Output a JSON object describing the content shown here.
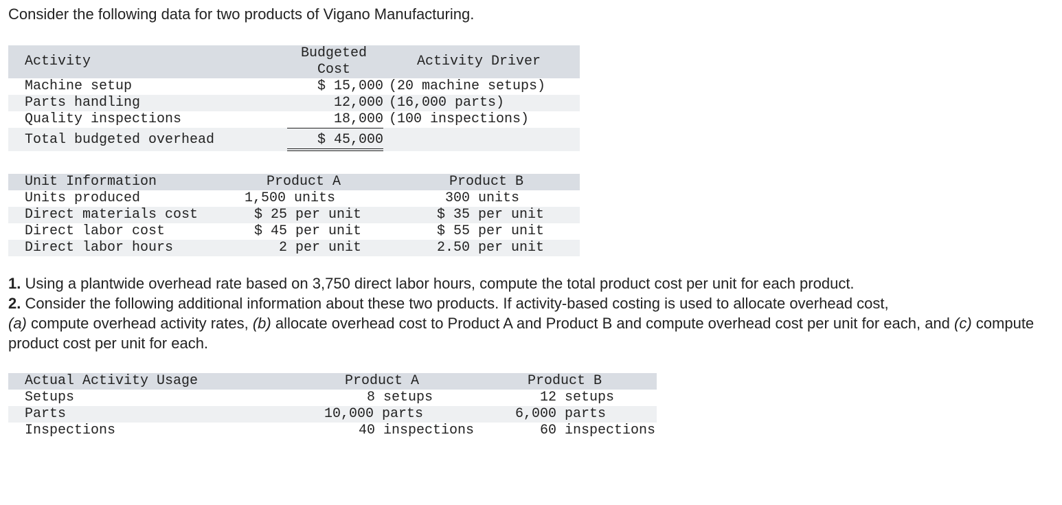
{
  "intro": "Consider the following data for two products of Vigano Manufacturing.",
  "overhead_table": {
    "headers": {
      "activity": "Activity",
      "cost_line1": "Budgeted",
      "cost_line2": "Cost",
      "driver": "Activity Driver"
    },
    "rows": [
      {
        "activity": "Machine setup",
        "cost": "$ 15,000",
        "driver": "(20 machine setups)"
      },
      {
        "activity": "Parts handling",
        "cost": "12,000",
        "driver": "(16,000 parts)"
      },
      {
        "activity": "Quality inspections",
        "cost": "18,000",
        "driver": "(100 inspections)"
      }
    ],
    "total": {
      "label": "Total budgeted overhead",
      "cost": "$ 45,000"
    }
  },
  "unit_table": {
    "headers": {
      "label": "Unit Information",
      "a": "Product A",
      "b": "Product B"
    },
    "rows": [
      {
        "label": "Units produced",
        "a": "1,500 units",
        "b": "300 units"
      },
      {
        "label": "Direct materials cost",
        "a": "$ 25 per unit",
        "b": "$ 35 per unit"
      },
      {
        "label": "Direct labor cost",
        "a": "$ 45 per unit",
        "b": "$ 55 per unit"
      },
      {
        "label": "Direct labor hours",
        "a": "2 per unit",
        "b": "2.50 per unit"
      }
    ]
  },
  "questions": {
    "q1_num": "1.",
    "q1_text": " Using a plantwide overhead rate based on 3,750 direct labor hours, compute the total product cost per unit for each product.",
    "q2_num": "2.",
    "q2_text": " Consider the following additional information about these two products. If activity-based costing is used to allocate overhead cost,",
    "q2_a": "(a)",
    "q2_a_text": " compute overhead activity rates, ",
    "q2_b": "(b)",
    "q2_b_text": " allocate overhead cost to Product A and Product B and compute overhead cost per unit for each, and ",
    "q2_c": "(c)",
    "q2_c_text": " compute product cost per unit for each."
  },
  "usage_table": {
    "headers": {
      "label": "Actual Activity Usage",
      "a": "Product A",
      "b": "Product B"
    },
    "rows": [
      {
        "label": "Setups",
        "a": "8 setups",
        "b": "12 setups"
      },
      {
        "label": "Parts",
        "a": "10,000 parts",
        "b": "6,000 parts"
      },
      {
        "label": "Inspections",
        "a": "40 inspections",
        "b": "60 inspections"
      }
    ]
  }
}
